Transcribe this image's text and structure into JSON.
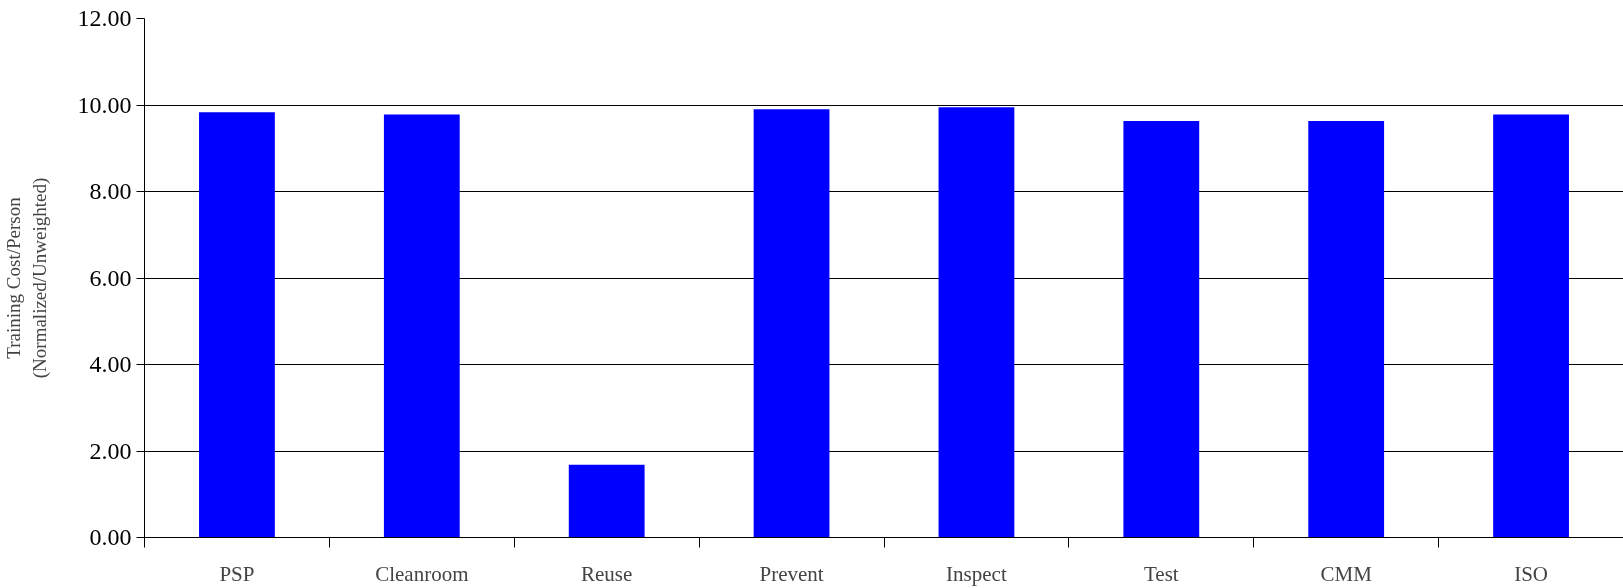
{
  "chart_data": {
    "type": "bar",
    "ylabel": "Training Cost/Person\n(Normalized/Unweighted)",
    "categories": [
      "PSP",
      "Cleanroom",
      "Reuse",
      "Prevent",
      "Inspect",
      "Test",
      "CMM",
      "ISO"
    ],
    "values": [
      9.83,
      9.78,
      1.68,
      9.9,
      9.95,
      9.63,
      9.63,
      9.78
    ],
    "color": "#0000ff",
    "ylim": [
      0,
      12
    ],
    "yticks": [
      {
        "value": 0,
        "label": "0.00"
      },
      {
        "value": 2,
        "label": "2.00"
      },
      {
        "value": 4,
        "label": "4.00"
      },
      {
        "value": 6,
        "label": "6.00"
      },
      {
        "value": 8,
        "label": "8.00"
      },
      {
        "value": 10,
        "label": "10.00"
      },
      {
        "value": 12,
        "label": "12.00"
      }
    ],
    "grid": "y"
  }
}
